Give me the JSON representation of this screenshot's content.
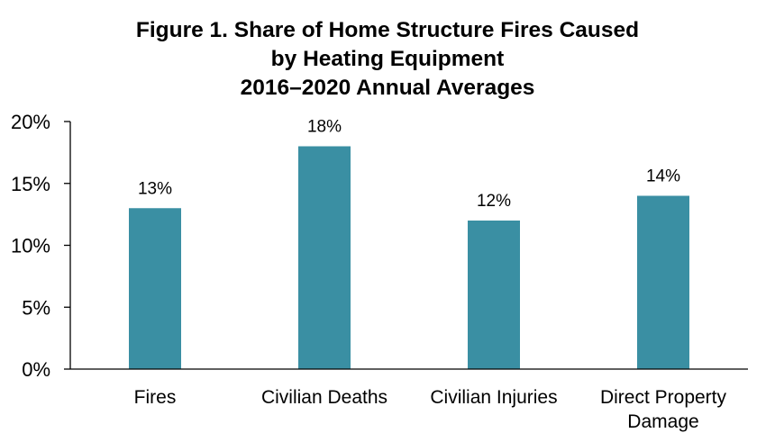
{
  "chart_data": {
    "type": "bar",
    "title_lines": [
      "Figure 1. Share of Home Structure Fires Caused",
      "by Heating Equipment",
      "2016–2020 Annual Averages"
    ],
    "categories": [
      [
        "Fires"
      ],
      [
        "Civilian Deaths"
      ],
      [
        "Civilian Injuries"
      ],
      [
        "Direct Property",
        "Damage"
      ]
    ],
    "values": [
      13,
      18,
      12,
      14
    ],
    "value_labels": [
      "13%",
      "18%",
      "12%",
      "14%"
    ],
    "ylim": [
      0,
      20
    ],
    "yticks": [
      0,
      5,
      10,
      15,
      20
    ],
    "ytick_labels": [
      "0%",
      "5%",
      "10%",
      "15%",
      "20%"
    ],
    "grid": false,
    "colors": {
      "bar": "#3a8fa3",
      "axis": "#000000"
    }
  }
}
